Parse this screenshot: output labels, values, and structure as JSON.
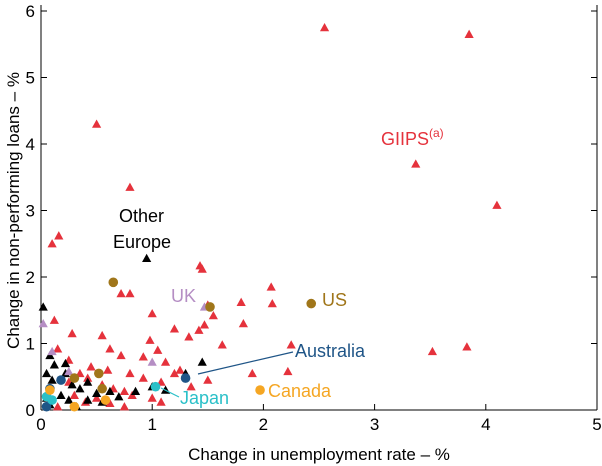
{
  "chart_data": {
    "type": "scatter",
    "xlabel": "Change in unemployment rate – %",
    "ylabel": "Change in non-performing loans – %",
    "xlim": [
      0,
      5
    ],
    "ylim": [
      0,
      6
    ],
    "xticks": [
      0,
      1,
      2,
      3,
      4,
      5
    ],
    "yticks": [
      0,
      1,
      2,
      3,
      4,
      5,
      6
    ],
    "grid": false,
    "colors": {
      "giips": "#e5323c",
      "other_europe": "#000000",
      "uk": "#b58ec4",
      "us": "#a0761a",
      "australia": "#1f5587",
      "japan": "#2ac0c8",
      "canada": "#f5a623"
    },
    "annotations": {
      "giips_label": "GIIPS",
      "giips_superscript": "(a)",
      "other_europe_label_line1": "Other",
      "other_europe_label_line2": "Europe",
      "uk_label": "UK",
      "us_label": "US",
      "australia_label": "Australia",
      "japan_label": "Japan",
      "canada_label": "Canada"
    },
    "series": [
      {
        "name": "GIIPS",
        "marker": "triangle",
        "color": "#e5323c",
        "points": [
          [
            2.55,
            5.75
          ],
          [
            3.85,
            5.65
          ],
          [
            0.5,
            4.3
          ],
          [
            3.37,
            3.7
          ],
          [
            4.1,
            3.08
          ],
          [
            0.8,
            3.35
          ],
          [
            0.16,
            2.62
          ],
          [
            0.1,
            2.5
          ],
          [
            1.43,
            2.17
          ],
          [
            1.45,
            2.12
          ],
          [
            0.72,
            1.75
          ],
          [
            0.8,
            1.75
          ],
          [
            1.8,
            1.62
          ],
          [
            2.07,
            1.85
          ],
          [
            2.08,
            1.6
          ],
          [
            1.5,
            1.58
          ],
          [
            1.0,
            1.45
          ],
          [
            1.2,
            1.22
          ],
          [
            1.42,
            1.2
          ],
          [
            1.33,
            1.1
          ],
          [
            1.47,
            1.28
          ],
          [
            1.55,
            1.42
          ],
          [
            0.12,
            1.35
          ],
          [
            0.28,
            1.15
          ],
          [
            0.55,
            1.12
          ],
          [
            0.15,
            0.92
          ],
          [
            0.62,
            0.92
          ],
          [
            0.98,
            1.05
          ],
          [
            1.05,
            0.9
          ],
          [
            1.63,
            0.98
          ],
          [
            1.82,
            1.3
          ],
          [
            2.25,
            0.98
          ],
          [
            0.25,
            0.75
          ],
          [
            0.45,
            0.65
          ],
          [
            0.72,
            0.82
          ],
          [
            0.92,
            0.8
          ],
          [
            1.12,
            0.72
          ],
          [
            1.25,
            0.6
          ],
          [
            1.9,
            0.55
          ],
          [
            2.22,
            0.58
          ],
          [
            3.52,
            0.88
          ],
          [
            3.83,
            0.95
          ],
          [
            0.35,
            0.55
          ],
          [
            0.6,
            0.6
          ],
          [
            0.8,
            0.55
          ],
          [
            0.92,
            0.48
          ],
          [
            1.08,
            0.42
          ],
          [
            1.2,
            0.55
          ],
          [
            1.35,
            0.35
          ],
          [
            1.5,
            0.45
          ],
          [
            0.25,
            0.42
          ],
          [
            0.42,
            0.48
          ],
          [
            0.55,
            0.38
          ],
          [
            0.65,
            0.32
          ],
          [
            0.75,
            0.28
          ],
          [
            0.82,
            0.22
          ],
          [
            0.3,
            0.22
          ],
          [
            0.5,
            0.18
          ],
          [
            0.4,
            0.12
          ],
          [
            0.62,
            0.1
          ],
          [
            1.0,
            0.18
          ],
          [
            1.08,
            0.12
          ],
          [
            0.75,
            0.05
          ],
          [
            0.15,
            0.05
          ]
        ]
      },
      {
        "name": "Other Europe",
        "marker": "triangle",
        "color": "#000000",
        "points": [
          [
            0.95,
            2.28
          ],
          [
            0.02,
            1.55
          ],
          [
            0.08,
            0.82
          ],
          [
            0.05,
            0.55
          ],
          [
            0.12,
            0.68
          ],
          [
            0.22,
            0.7
          ],
          [
            0.1,
            0.45
          ],
          [
            0.28,
            0.38
          ],
          [
            0.35,
            0.32
          ],
          [
            0.42,
            0.42
          ],
          [
            0.5,
            0.25
          ],
          [
            0.18,
            0.22
          ],
          [
            0.25,
            0.15
          ],
          [
            0.32,
            0.05
          ],
          [
            0.42,
            0.15
          ],
          [
            0.55,
            0.12
          ],
          [
            0.62,
            0.28
          ],
          [
            0.7,
            0.2
          ],
          [
            0.85,
            0.28
          ],
          [
            1.0,
            0.35
          ],
          [
            1.12,
            0.3
          ],
          [
            1.3,
            0.55
          ],
          [
            1.45,
            0.72
          ],
          [
            0.05,
            0.18
          ],
          [
            0.08,
            0.08
          ],
          [
            0.22,
            0.55
          ]
        ]
      },
      {
        "name": "UK",
        "marker": "triangle",
        "color": "#b58ec4",
        "points": [
          [
            1.47,
            1.55
          ],
          [
            0.1,
            0.88
          ],
          [
            0.25,
            0.58
          ],
          [
            1.0,
            0.72
          ],
          [
            0.02,
            1.3
          ]
        ]
      },
      {
        "name": "US",
        "marker": "circle",
        "color": "#a0761a",
        "points": [
          [
            2.43,
            1.6
          ],
          [
            0.65,
            1.92
          ],
          [
            1.52,
            1.55
          ],
          [
            0.52,
            0.55
          ],
          [
            0.3,
            0.48
          ],
          [
            0.55,
            0.32
          ]
        ]
      },
      {
        "name": "Australia",
        "marker": "circle",
        "color": "#1f5587",
        "points": [
          [
            1.3,
            0.48
          ],
          [
            0.18,
            0.45
          ],
          [
            0.08,
            0.32
          ],
          [
            0.05,
            0.05
          ]
        ]
      },
      {
        "name": "Japan",
        "marker": "circle",
        "color": "#2ac0c8",
        "points": [
          [
            1.03,
            0.35
          ],
          [
            0.1,
            0.15
          ],
          [
            0.05,
            0.2
          ]
        ]
      },
      {
        "name": "Canada",
        "marker": "circle",
        "color": "#f5a623",
        "points": [
          [
            1.97,
            0.3
          ],
          [
            0.58,
            0.15
          ],
          [
            0.3,
            0.05
          ],
          [
            0.08,
            0.3
          ]
        ]
      }
    ]
  }
}
